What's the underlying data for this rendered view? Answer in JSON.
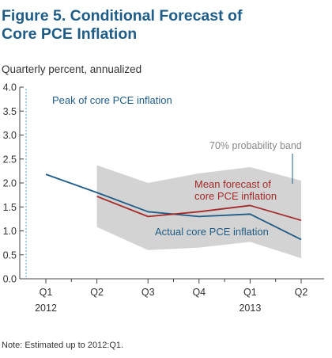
{
  "figure": {
    "title_line1": "Figure 5. Conditional Forecast of",
    "title_line2": "Core PCE Inflation",
    "subtitle": "Quarterly percent, annualized",
    "note": "Note: Estimated up to 2012:Q1."
  },
  "chart_data": {
    "type": "line",
    "categories": [
      "Q1",
      "Q2",
      "Q3",
      "Q4",
      "Q1",
      "Q2"
    ],
    "year_labels": [
      "2012",
      "",
      "",
      "",
      "2013",
      ""
    ],
    "ylim": [
      0.0,
      4.0
    ],
    "yticks": [
      "0.0",
      "0.5",
      "1.0",
      "1.5",
      "2.0",
      "2.5",
      "3.0",
      "3.5",
      "4.0"
    ],
    "grid": false,
    "series": [
      {
        "name": "Actual core PCE inflation",
        "color": "#1f5c86",
        "values": [
          2.18,
          1.8,
          1.4,
          1.3,
          1.35,
          0.82
        ]
      },
      {
        "name": "Mean forecast of core PCE inflation",
        "color": "#a52a2a",
        "values": [
          null,
          1.72,
          1.3,
          1.4,
          1.53,
          1.22
        ]
      }
    ],
    "band": {
      "name": "70% probability band",
      "color": "#d3d3d3",
      "upper": [
        null,
        2.37,
        2.0,
        2.2,
        2.33,
        2.05
      ],
      "lower": [
        null,
        1.08,
        0.6,
        0.65,
        0.77,
        0.43
      ]
    },
    "annotations": {
      "peak": "Peak of core PCE inflation",
      "band_label": "70% probability band",
      "mean_line1": "Mean forecast of",
      "mean_line2": "core PCE inflation",
      "actual_label": "Actual core PCE inflation"
    }
  }
}
